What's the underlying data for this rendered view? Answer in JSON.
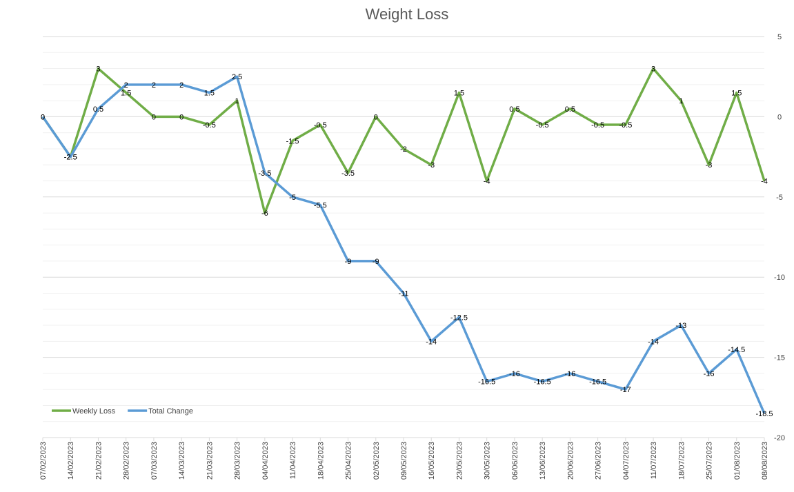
{
  "chart_data": {
    "type": "line",
    "title": "Weight Loss",
    "categories": [
      "07/02/2023",
      "14/02/2023",
      "21/02/2023",
      "28/02/2023",
      "07/03/2023",
      "14/03/2023",
      "21/03/2023",
      "28/03/2023",
      "04/04/2023",
      "11/04/2023",
      "18/04/2023",
      "25/04/2023",
      "02/05/2023",
      "09/05/2023",
      "16/05/2023",
      "23/05/2023",
      "30/05/2023",
      "06/06/2023",
      "13/06/2023",
      "20/06/2023",
      "27/06/2023",
      "04/07/2023",
      "11/07/2023",
      "18/07/2023",
      "25/07/2023",
      "01/08/2023",
      "08/08/2023"
    ],
    "series": [
      {
        "name": "Weekly Loss",
        "color": "#70ad47",
        "values": [
          0,
          -2.5,
          3,
          1.5,
          0,
          0,
          -0.5,
          1,
          -6,
          -1.5,
          -0.5,
          -3.5,
          0,
          -2,
          -3,
          1.5,
          -4,
          0.5,
          -0.5,
          0.5,
          -0.5,
          -0.5,
          3,
          1,
          -3,
          1.5,
          -4
        ]
      },
      {
        "name": "Total Change",
        "color": "#5b9bd5",
        "values": [
          0,
          -2.5,
          0.5,
          2,
          2,
          2,
          1.5,
          2.5,
          -3.5,
          -5,
          -5.5,
          -9,
          -9,
          -11,
          -14,
          -12.5,
          -16.5,
          -16,
          -16.5,
          -16,
          -16.5,
          -17,
          -14,
          -13,
          -16,
          -14.5,
          -18.5
        ]
      }
    ],
    "ylim": [
      -20,
      5
    ],
    "yticks": [
      -20,
      -15,
      -10,
      -5,
      0,
      5
    ],
    "grid": true,
    "legend": "bottom-left"
  }
}
